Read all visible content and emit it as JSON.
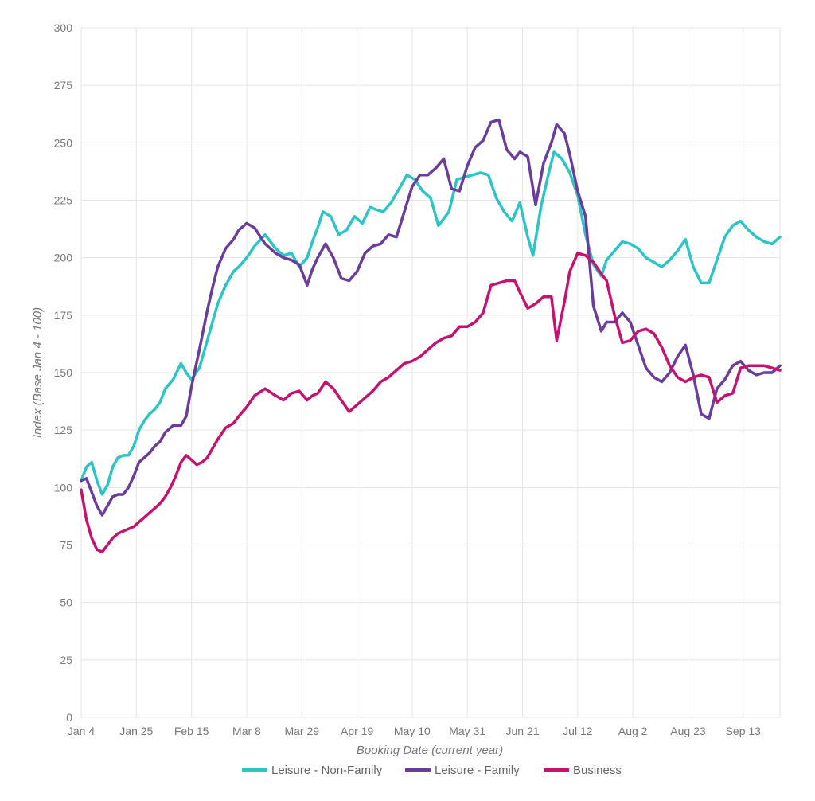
{
  "chart_data": {
    "type": "line",
    "title": "",
    "xlabel": "Booking Date (current year)",
    "ylabel": "Index (Base Jan 4 - 100)",
    "ylim": [
      0,
      300
    ],
    "y_ticks": [
      0,
      25,
      50,
      75,
      100,
      125,
      150,
      175,
      200,
      225,
      250,
      275,
      300
    ],
    "xlim": [
      0,
      266
    ],
    "x_ticks": [
      {
        "day": 0,
        "label": "Jan 4"
      },
      {
        "day": 21,
        "label": "Jan 25"
      },
      {
        "day": 42,
        "label": "Feb 15"
      },
      {
        "day": 63,
        "label": "Mar 8"
      },
      {
        "day": 84,
        "label": "Mar 29"
      },
      {
        "day": 105,
        "label": "Apr 19"
      },
      {
        "day": 126,
        "label": "May 10"
      },
      {
        "day": 147,
        "label": "May 31"
      },
      {
        "day": 168,
        "label": "Jun 21"
      },
      {
        "day": 189,
        "label": "Jul 12"
      },
      {
        "day": 210,
        "label": "Aug 2"
      },
      {
        "day": 231,
        "label": "Aug 23"
      },
      {
        "day": 252,
        "label": "Sep 13"
      }
    ],
    "grid": true,
    "legend_position": "bottom",
    "series": [
      {
        "name": "Leisure - Non-Family",
        "color": "#2cc5c5",
        "x": [
          0,
          2,
          4,
          6,
          8,
          10,
          12,
          14,
          16,
          18,
          20,
          22,
          24,
          26,
          28,
          30,
          32,
          35,
          38,
          40,
          42,
          45,
          48,
          50,
          52,
          55,
          58,
          60,
          63,
          66,
          70,
          74,
          77,
          80,
          83,
          86,
          88,
          90,
          92,
          95,
          98,
          101,
          104,
          107,
          110,
          112,
          115,
          118,
          121,
          124,
          127,
          130,
          133,
          136,
          140,
          143,
          146,
          149,
          152,
          155,
          158,
          161,
          164,
          167,
          170,
          172,
          175,
          178,
          180,
          183,
          186,
          189,
          192,
          195,
          198,
          200,
          203,
          206,
          209,
          212,
          215,
          218,
          221,
          224,
          227,
          230,
          233,
          236,
          239,
          242,
          245,
          248,
          251,
          254,
          257,
          260,
          263,
          266
        ],
        "y": [
          103,
          109,
          111,
          103,
          97,
          101,
          109,
          113,
          114,
          114,
          118,
          125,
          129,
          132,
          134,
          137,
          143,
          147,
          154,
          150,
          147,
          152,
          164,
          172,
          180,
          188,
          194,
          196,
          200,
          205,
          210,
          204,
          201,
          202,
          196,
          200,
          207,
          213,
          220,
          218,
          210,
          212,
          218,
          215,
          222,
          221,
          220,
          224,
          230,
          236,
          234,
          229,
          226,
          214,
          220,
          234,
          235,
          236,
          237,
          236,
          226,
          220,
          216,
          224,
          209,
          201,
          222,
          237,
          246,
          243,
          237,
          227,
          210,
          197,
          192,
          199,
          203,
          207,
          206,
          204,
          200,
          198,
          196,
          199,
          203,
          208,
          196,
          189,
          189,
          199,
          209,
          214,
          216,
          212,
          209,
          207,
          206,
          209
        ]
      },
      {
        "name": "Leisure - Family",
        "color": "#6a3c9c",
        "x": [
          0,
          2,
          4,
          6,
          8,
          10,
          12,
          14,
          16,
          18,
          20,
          22,
          24,
          26,
          28,
          30,
          32,
          35,
          38,
          40,
          42,
          45,
          48,
          50,
          52,
          55,
          58,
          60,
          63,
          66,
          70,
          74,
          77,
          80,
          83,
          86,
          88,
          90,
          93,
          96,
          99,
          102,
          105,
          108,
          111,
          114,
          117,
          120,
          123,
          126,
          129,
          132,
          135,
          138,
          141,
          144,
          147,
          150,
          153,
          156,
          159,
          162,
          165,
          167,
          170,
          173,
          176,
          179,
          181,
          184,
          186,
          189,
          192,
          195,
          198,
          200,
          203,
          206,
          209,
          212,
          215,
          218,
          221,
          224,
          227,
          230,
          233,
          236,
          239,
          242,
          245,
          248,
          251,
          254,
          257,
          260,
          263,
          266
        ],
        "y": [
          103,
          104,
          98,
          92,
          88,
          92,
          96,
          97,
          97,
          100,
          105,
          111,
          113,
          115,
          118,
          120,
          124,
          127,
          127,
          131,
          144,
          160,
          177,
          187,
          196,
          204,
          208,
          212,
          215,
          213,
          206,
          202,
          200,
          199,
          197,
          188,
          195,
          200,
          206,
          200,
          191,
          190,
          194,
          202,
          205,
          206,
          210,
          209,
          220,
          231,
          236,
          236,
          239,
          243,
          230,
          229,
          240,
          248,
          251,
          259,
          260,
          247,
          243,
          246,
          244,
          223,
          241,
          250,
          258,
          254,
          245,
          229,
          218,
          179,
          168,
          172,
          172,
          176,
          172,
          162,
          152,
          148,
          146,
          150,
          157,
          162,
          149,
          132,
          130,
          143,
          147,
          153,
          155,
          151,
          149,
          150,
          150,
          153
        ]
      },
      {
        "name": "Business",
        "color": "#c8106f",
        "x": [
          0,
          2,
          4,
          6,
          8,
          10,
          12,
          14,
          16,
          18,
          20,
          22,
          24,
          26,
          28,
          30,
          32,
          34,
          36,
          38,
          40,
          42,
          44,
          46,
          48,
          50,
          52,
          55,
          58,
          60,
          63,
          66,
          70,
          74,
          77,
          80,
          83,
          86,
          88,
          90,
          93,
          96,
          99,
          102,
          105,
          108,
          111,
          114,
          117,
          120,
          123,
          126,
          129,
          132,
          135,
          138,
          141,
          144,
          147,
          150,
          153,
          156,
          159,
          162,
          165,
          167,
          170,
          173,
          176,
          179,
          181,
          184,
          186,
          189,
          192,
          195,
          198,
          200,
          203,
          206,
          209,
          212,
          215,
          218,
          221,
          224,
          227,
          230,
          233,
          236,
          239,
          242,
          245,
          248,
          251,
          254,
          257,
          260,
          263,
          266
        ],
        "y": [
          99,
          86,
          78,
          73,
          72,
          75,
          78,
          80,
          81,
          82,
          83,
          85,
          87,
          89,
          91,
          93,
          96,
          100,
          105,
          111,
          114,
          112,
          110,
          111,
          113,
          117,
          121,
          126,
          128,
          131,
          135,
          140,
          143,
          140,
          138,
          141,
          142,
          138,
          140,
          141,
          146,
          143,
          138,
          133,
          136,
          139,
          142,
          146,
          148,
          151,
          154,
          155,
          157,
          160,
          163,
          165,
          166,
          170,
          170,
          172,
          176,
          188,
          189,
          190,
          190,
          185,
          178,
          180,
          183,
          183,
          164,
          181,
          194,
          202,
          201,
          198,
          193,
          190,
          175,
          163,
          164,
          168,
          169,
          167,
          161,
          153,
          148,
          146,
          148,
          149,
          148,
          137,
          140,
          141,
          152,
          153,
          153,
          153,
          152,
          151
        ]
      }
    ]
  }
}
